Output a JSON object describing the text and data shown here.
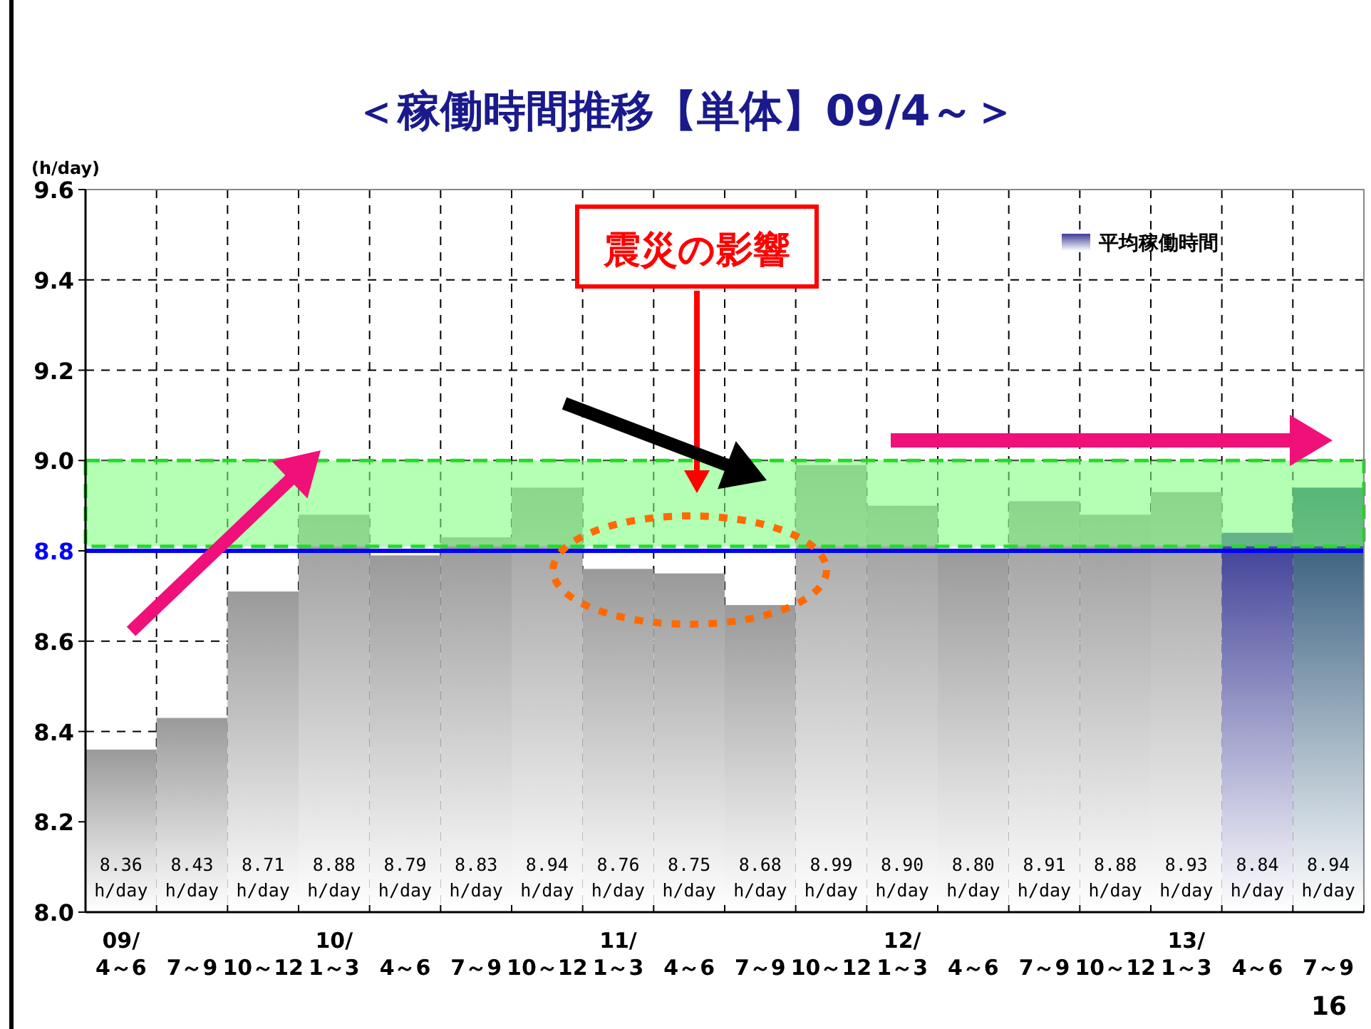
{
  "chart_data": {
    "type": "bar",
    "title": "＜稼働時間推移【単体】09/4～＞",
    "ylabel": "(h/day)",
    "categories": [
      "09/\n4～6",
      "7～9",
      "10～12",
      "10/\n1～3",
      "4～6",
      "7～9",
      "10～12",
      "11/\n1～3",
      "4～6",
      "7～9",
      "10～12",
      "12/\n1～3",
      "4～6",
      "7～9",
      "10～12",
      "13/\n1～3",
      "4～6",
      "7～9"
    ],
    "series": [
      {
        "name": "平均稼働時間",
        "color": "#3d3d96",
        "colors": [
          "#9a9a9a",
          "#9a9a9a",
          "#9a9a9a",
          "#9a9a9a",
          "#9a9a9a",
          "#9a9a9a",
          "#9a9a9a",
          "#9a9a9a",
          "#9a9a9a",
          "#9a9a9a",
          "#9a9a9a",
          "#9a9a9a",
          "#9a9a9a",
          "#9a9a9a",
          "#9a9a9a",
          "#9a9a9a",
          "#3d3d96",
          "#1e4a6e"
        ],
        "values": [
          8.36,
          8.43,
          8.71,
          8.88,
          8.79,
          8.83,
          8.94,
          8.76,
          8.75,
          8.68,
          8.99,
          8.9,
          8.8,
          8.91,
          8.88,
          8.93,
          8.84,
          8.94
        ],
        "value_labels": [
          "8.36 h/day",
          "8.43 h/day",
          "8.71 h/day",
          "8.88 h/day",
          "8.79 h/day",
          "8.83 h/day",
          "8.94 h/day",
          "8.76 h/day",
          "8.75 h/day",
          "8.68 h/day",
          "8.99 h/day",
          "8.90 h/day",
          "8.80 h/day",
          "8.91 h/day",
          "8.88 h/day",
          "8.93 h/day",
          "8.84 h/day",
          "8.94 h/day"
        ]
      }
    ],
    "ylim": [
      8.0,
      9.6
    ],
    "yticks": [
      {
        "value": 8,
        "label": "8.0"
      },
      8.2,
      8.4,
      8.6,
      8.8,
      {
        "value": 9,
        "label": "9.0"
      },
      9.2,
      9.4,
      9.6
    ],
    "grid": true,
    "legend": "top right",
    "ref_lines": [
      {
        "axis": "y",
        "value": 8.8,
        "color": "#0000ff"
      }
    ],
    "bands": [
      {
        "axis": "y",
        "from": 8.81,
        "to": 9.0,
        "color": "#80ff80"
      }
    ],
    "annotations": [
      "震災の影響",
      "16"
    ]
  }
}
